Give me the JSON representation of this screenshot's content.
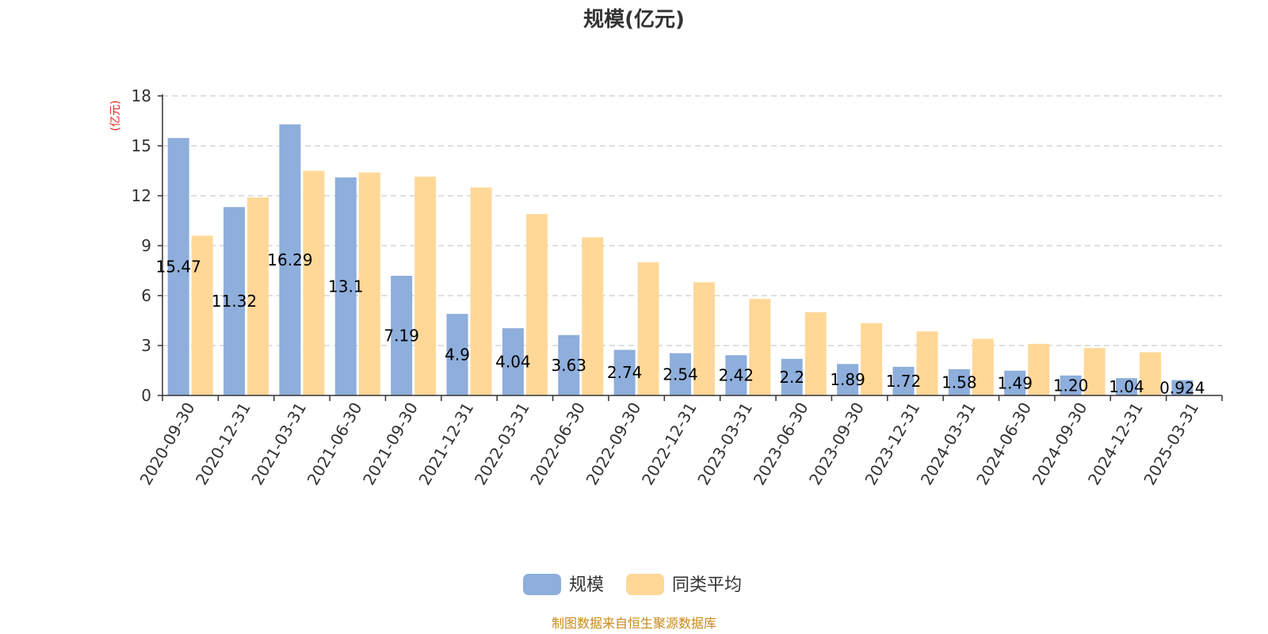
{
  "chart_data": {
    "type": "bar",
    "title": "规模(亿元)",
    "ylabel": "(亿元)",
    "ylim": [
      0,
      18
    ],
    "yticks": [
      0,
      3,
      6,
      9,
      12,
      15,
      18
    ],
    "grid": true,
    "legend_position": "bottom-center",
    "categories": [
      "2020-09-30",
      "2020-12-31",
      "2021-03-31",
      "2021-06-30",
      "2021-09-30",
      "2021-12-31",
      "2022-03-31",
      "2022-06-30",
      "2022-09-30",
      "2022-12-31",
      "2023-03-31",
      "2023-06-30",
      "2023-09-30",
      "2023-12-31",
      "2024-03-31",
      "2024-06-30",
      "2024-09-30",
      "2024-12-31",
      "2025-03-31"
    ],
    "series": [
      {
        "name": "规模",
        "color": "#8eaedb",
        "values": [
          15.47,
          11.32,
          16.29,
          13.1,
          7.19,
          4.9,
          4.04,
          3.63,
          2.74,
          2.54,
          2.42,
          2.2,
          1.89,
          1.72,
          1.58,
          1.49,
          1.2,
          1.04,
          0.924
        ],
        "labels": [
          "15.47",
          "11.32",
          "16.29",
          "13.1",
          "7.19",
          "4.9",
          "4.04",
          "3.63",
          "2.74",
          "2.54",
          "2.42",
          "2.2",
          "1.89",
          "1.72",
          "1.58",
          "1.49",
          "1.20",
          "1.04",
          "0.924"
        ]
      },
      {
        "name": "同类平均",
        "color": "#ffd898",
        "values": [
          9.6,
          11.9,
          13.5,
          13.4,
          13.15,
          12.5,
          10.9,
          9.5,
          8.0,
          6.8,
          5.8,
          5.0,
          4.35,
          3.85,
          3.4,
          3.1,
          2.85,
          2.6,
          null
        ]
      }
    ]
  },
  "footer": {
    "source": "制图数据来自恒生聚源数据库"
  }
}
